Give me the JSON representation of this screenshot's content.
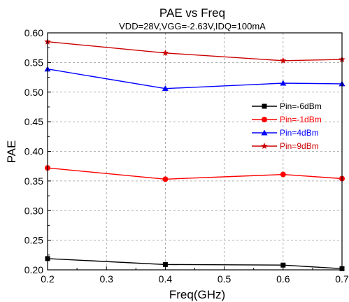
{
  "chart_data": {
    "type": "line",
    "title": "PAE vs  Freq",
    "subtitle": "VDD=28V,VGG=-2.63V,IDQ=100mA",
    "xlabel": "Freq(GHz)",
    "ylabel": "PAE",
    "xlim": [
      0.2,
      0.7
    ],
    "ylim": [
      0.2,
      0.6
    ],
    "xticks": [
      "0.2",
      "0.3",
      "0.4",
      "0.5",
      "0.6",
      "0.7"
    ],
    "yticks": [
      "0.20",
      "0.25",
      "0.30",
      "0.35",
      "0.40",
      "0.45",
      "0.50",
      "0.55",
      "0.60"
    ],
    "grid": true,
    "legend_position": "right",
    "series": [
      {
        "name": "Pin=-6dBm",
        "color": "#000000",
        "marker": "square",
        "x": [
          0.2,
          0.4,
          0.6,
          0.7
        ],
        "y": [
          0.219,
          0.209,
          0.208,
          0.202
        ]
      },
      {
        "name": "Pin=-1dBm",
        "color": "#ff0000",
        "marker": "circle",
        "x": [
          0.2,
          0.4,
          0.6,
          0.7
        ],
        "y": [
          0.372,
          0.353,
          0.361,
          0.354
        ]
      },
      {
        "name": "Pin=4dBm",
        "color": "#0000ff",
        "marker": "triangle",
        "x": [
          0.2,
          0.4,
          0.6,
          0.7
        ],
        "y": [
          0.539,
          0.506,
          0.515,
          0.514
        ]
      },
      {
        "name": "Pin=9dBm",
        "color": "#cc0000",
        "marker": "star",
        "x": [
          0.2,
          0.4,
          0.6,
          0.7
        ],
        "y": [
          0.585,
          0.566,
          0.553,
          0.555
        ]
      }
    ]
  }
}
